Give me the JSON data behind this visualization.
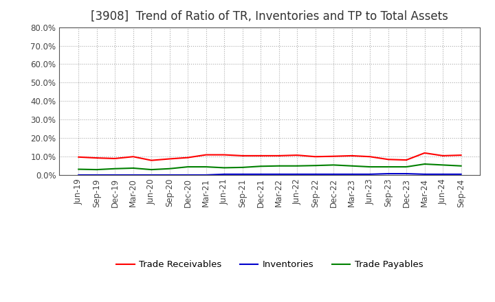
{
  "title": "[3908]  Trend of Ratio of TR, Inventories and TP to Total Assets",
  "x_labels": [
    "Jun-19",
    "Sep-19",
    "Dec-19",
    "Mar-20",
    "Jun-20",
    "Sep-20",
    "Dec-20",
    "Mar-21",
    "Jun-21",
    "Sep-21",
    "Dec-21",
    "Mar-22",
    "Jun-22",
    "Sep-22",
    "Dec-22",
    "Mar-23",
    "Jun-23",
    "Sep-23",
    "Dec-23",
    "Mar-24",
    "Jun-24",
    "Sep-24"
  ],
  "trade_receivables": [
    9.8,
    9.3,
    9.0,
    10.0,
    8.0,
    8.8,
    9.5,
    11.0,
    11.0,
    10.5,
    10.5,
    10.5,
    10.8,
    10.0,
    10.2,
    10.5,
    10.0,
    8.5,
    8.2,
    12.0,
    10.5,
    10.8
  ],
  "inventories": [
    0.1,
    0.1,
    0.1,
    0.1,
    0.1,
    0.1,
    0.1,
    0.1,
    0.5,
    0.5,
    0.5,
    0.5,
    0.5,
    0.5,
    0.5,
    0.5,
    0.5,
    0.8,
    0.8,
    0.5,
    0.5,
    0.5
  ],
  "trade_payables": [
    3.2,
    3.0,
    3.5,
    3.8,
    3.0,
    3.5,
    4.5,
    4.5,
    4.0,
    4.2,
    4.8,
    5.0,
    5.0,
    5.2,
    5.5,
    5.0,
    4.5,
    4.5,
    4.5,
    6.0,
    5.5,
    5.0
  ],
  "tr_color": "#FF0000",
  "inv_color": "#0000CC",
  "tp_color": "#008000",
  "ylim": [
    0,
    80
  ],
  "yticks": [
    0,
    10,
    20,
    30,
    40,
    50,
    60,
    70,
    80
  ],
  "ytick_labels": [
    "0.0%",
    "10.0%",
    "20.0%",
    "30.0%",
    "40.0%",
    "50.0%",
    "60.0%",
    "70.0%",
    "80.0%"
  ],
  "legend_tr": "Trade Receivables",
  "legend_inv": "Inventories",
  "legend_tp": "Trade Payables",
  "bg_color": "#FFFFFF",
  "plot_bg_color": "#FFFFFF",
  "grid_color": "#AAAAAA",
  "title_fontsize": 12,
  "tick_fontsize": 8.5,
  "legend_fontsize": 9.5
}
